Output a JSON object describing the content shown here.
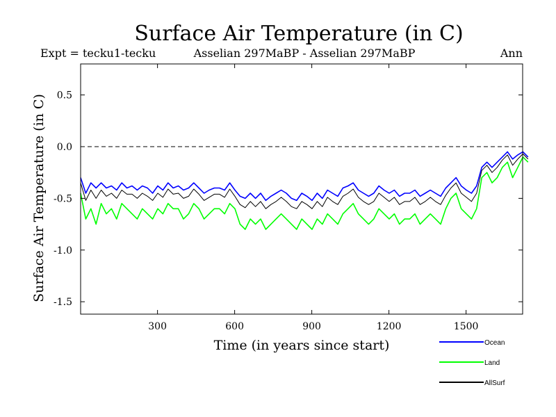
{
  "chart_data": {
    "type": "line",
    "title": "Surface Air Temperature (in C)",
    "subtitle_left": "Expt = tecku1-tecku",
    "subtitle_center": "Asselian 297MaBP - Asselian 297MaBP",
    "subtitle_right": "Ann",
    "xlabel": "Time (in years since start)",
    "ylabel": "Surface Air Temperature (in C)",
    "xlim": [
      1,
      1720
    ],
    "ylim": [
      -1.62,
      0.8
    ],
    "x_ticks": [
      300,
      600,
      900,
      1200,
      1500
    ],
    "x_tick_labels": [
      "300",
      "600",
      "900",
      "1200",
      "1500"
    ],
    "y_ticks": [
      0.5,
      0.0,
      -0.5,
      -1.0,
      -1.5
    ],
    "y_tick_labels": [
      "0.5",
      "0.0",
      "-0.5",
      "-1.0",
      "-1.5"
    ],
    "reference_line": 0.0,
    "legend_position": "bottom-right",
    "series": [
      {
        "name": "Land",
        "color": "#00ff00",
        "x_start": 1,
        "x_step": 20,
        "values": [
          -0.45,
          -0.7,
          -0.6,
          -0.75,
          -0.55,
          -0.65,
          -0.6,
          -0.7,
          -0.55,
          -0.6,
          -0.65,
          -0.7,
          -0.6,
          -0.65,
          -0.7,
          -0.6,
          -0.65,
          -0.55,
          -0.6,
          -0.6,
          -0.7,
          -0.65,
          -0.55,
          -0.6,
          -0.7,
          -0.65,
          -0.6,
          -0.6,
          -0.65,
          -0.55,
          -0.6,
          -0.75,
          -0.8,
          -0.7,
          -0.75,
          -0.7,
          -0.8,
          -0.75,
          -0.7,
          -0.65,
          -0.7,
          -0.75,
          -0.8,
          -0.7,
          -0.75,
          -0.8,
          -0.7,
          -0.75,
          -0.65,
          -0.7,
          -0.75,
          -0.65,
          -0.6,
          -0.55,
          -0.65,
          -0.7,
          -0.75,
          -0.7,
          -0.6,
          -0.65,
          -0.7,
          -0.65,
          -0.75,
          -0.7,
          -0.7,
          -0.65,
          -0.75,
          -0.7,
          -0.65,
          -0.7,
          -0.75,
          -0.6,
          -0.5,
          -0.45,
          -0.6,
          -0.65,
          -0.7,
          -0.6,
          -0.3,
          -0.25,
          -0.35,
          -0.3,
          -0.2,
          -0.15,
          -0.3,
          -0.2,
          -0.1,
          -0.15
        ]
      },
      {
        "name": "Ocean",
        "color": "#0000ff",
        "x_start": 1,
        "x_step": 20,
        "values": [
          -0.3,
          -0.45,
          -0.35,
          -0.4,
          -0.35,
          -0.4,
          -0.38,
          -0.42,
          -0.35,
          -0.4,
          -0.38,
          -0.42,
          -0.38,
          -0.4,
          -0.45,
          -0.38,
          -0.42,
          -0.35,
          -0.4,
          -0.38,
          -0.42,
          -0.4,
          -0.35,
          -0.4,
          -0.45,
          -0.42,
          -0.4,
          -0.4,
          -0.42,
          -0.35,
          -0.42,
          -0.48,
          -0.5,
          -0.45,
          -0.5,
          -0.45,
          -0.52,
          -0.48,
          -0.45,
          -0.42,
          -0.45,
          -0.5,
          -0.52,
          -0.45,
          -0.48,
          -0.52,
          -0.45,
          -0.5,
          -0.42,
          -0.45,
          -0.48,
          -0.4,
          -0.38,
          -0.35,
          -0.42,
          -0.45,
          -0.48,
          -0.45,
          -0.38,
          -0.42,
          -0.45,
          -0.42,
          -0.48,
          -0.45,
          -0.45,
          -0.42,
          -0.48,
          -0.45,
          -0.42,
          -0.45,
          -0.48,
          -0.4,
          -0.35,
          -0.3,
          -0.38,
          -0.42,
          -0.45,
          -0.38,
          -0.2,
          -0.15,
          -0.2,
          -0.15,
          -0.1,
          -0.05,
          -0.12,
          -0.08,
          -0.05,
          -0.1
        ]
      },
      {
        "name": "AllSurf",
        "color": "#000000",
        "x_start": 1,
        "x_step": 20,
        "values": [
          -0.35,
          -0.52,
          -0.42,
          -0.5,
          -0.42,
          -0.48,
          -0.45,
          -0.5,
          -0.42,
          -0.46,
          -0.46,
          -0.5,
          -0.45,
          -0.48,
          -0.52,
          -0.45,
          -0.49,
          -0.41,
          -0.46,
          -0.45,
          -0.5,
          -0.48,
          -0.41,
          -0.46,
          -0.52,
          -0.49,
          -0.46,
          -0.46,
          -0.49,
          -0.41,
          -0.48,
          -0.56,
          -0.59,
          -0.53,
          -0.58,
          -0.53,
          -0.6,
          -0.56,
          -0.53,
          -0.49,
          -0.53,
          -0.58,
          -0.6,
          -0.53,
          -0.56,
          -0.6,
          -0.53,
          -0.58,
          -0.49,
          -0.53,
          -0.56,
          -0.48,
          -0.45,
          -0.41,
          -0.49,
          -0.53,
          -0.56,
          -0.53,
          -0.45,
          -0.49,
          -0.53,
          -0.49,
          -0.56,
          -0.53,
          -0.53,
          -0.49,
          -0.56,
          -0.53,
          -0.49,
          -0.53,
          -0.56,
          -0.47,
          -0.4,
          -0.35,
          -0.45,
          -0.49,
          -0.53,
          -0.45,
          -0.23,
          -0.18,
          -0.25,
          -0.2,
          -0.13,
          -0.08,
          -0.18,
          -0.12,
          -0.07,
          -0.12
        ]
      }
    ],
    "legend": [
      {
        "label": "Ocean",
        "color": "#0000ff"
      },
      {
        "label": "Land",
        "color": "#00ff00"
      },
      {
        "label": "AllSurf",
        "color": "#000000"
      }
    ]
  }
}
